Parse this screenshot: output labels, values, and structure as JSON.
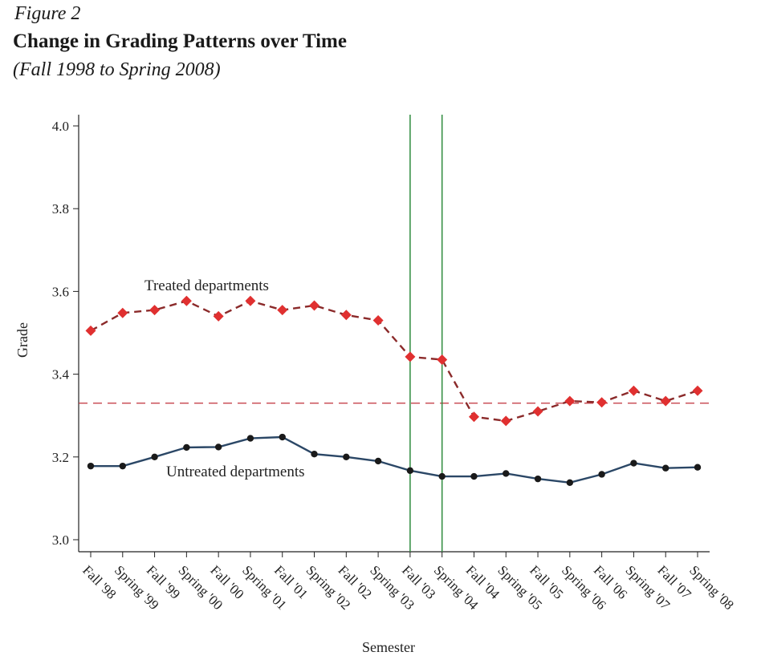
{
  "figure": {
    "label": "Figure 2",
    "title": "Change in Grading Patterns over Time",
    "subtitle": "(Fall 1998 to Spring 2008)"
  },
  "chart_data": {
    "type": "line",
    "xlabel": "Semester",
    "ylabel": "Grade",
    "ylim": [
      3.0,
      4.0
    ],
    "yticks": [
      "3.0",
      "3.2",
      "3.4",
      "3.6",
      "3.8",
      "4.0"
    ],
    "categories": [
      "Fall '98",
      "Spring '99",
      "Fall '99",
      "Spring '00",
      "Fall '00",
      "Spring '01",
      "Fall '01",
      "Spring '02",
      "Fall '02",
      "Spring '03",
      "Fall '03",
      "Spring '04",
      "Fall '04",
      "Spring '05",
      "Fall '05",
      "Spring '06",
      "Fall '06",
      "Spring '07",
      "Fall '07",
      "Spring '08"
    ],
    "series": [
      {
        "name": "Treated departments",
        "color": "#8b2a2a",
        "marker_color": "#e03030",
        "marker": "diamond",
        "line_style": "dashed",
        "values": [
          3.505,
          3.548,
          3.555,
          3.577,
          3.54,
          3.577,
          3.555,
          3.566,
          3.543,
          3.53,
          3.442,
          3.435,
          3.297,
          3.287,
          3.31,
          3.335,
          3.332,
          3.36,
          3.335,
          3.36
        ]
      },
      {
        "name": "Untreated departments",
        "color": "#2b4766",
        "marker_color": "#1a1a1a",
        "marker": "circle",
        "line_style": "solid",
        "values": [
          3.178,
          3.178,
          3.2,
          3.223,
          3.224,
          3.245,
          3.248,
          3.207,
          3.2,
          3.19,
          3.167,
          3.153,
          3.153,
          3.16,
          3.147,
          3.138,
          3.158,
          3.185,
          3.173,
          3.175
        ]
      }
    ],
    "reference_line": {
      "y": 3.33,
      "color": "#c0303a",
      "style": "dashed"
    },
    "vertical_lines": {
      "at": [
        "Fall '03",
        "Spring '04"
      ],
      "color": "#2e8b3e"
    },
    "grid": false
  }
}
